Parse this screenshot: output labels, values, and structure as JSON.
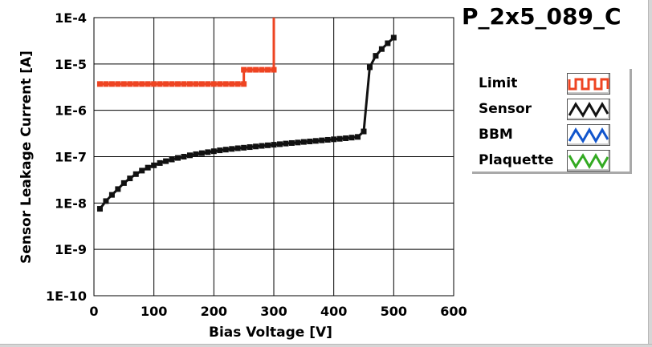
{
  "title": "P_2x5_089_C",
  "colors": {
    "limit": "#ee4422",
    "sensor": "#111111",
    "bbm": "#1155cc",
    "plaquette": "#33aa22",
    "grid": "#000000",
    "background": "#ffffff"
  },
  "legend": {
    "items": [
      {
        "label": "Limit",
        "color": "#ee4422",
        "pattern": "square-wave"
      },
      {
        "label": "Sensor",
        "color": "#111111",
        "pattern": "triangle-wave"
      },
      {
        "label": "BBM",
        "color": "#1155cc",
        "pattern": "triangle-wave"
      },
      {
        "label": "Plaquette",
        "color": "#33aa22",
        "pattern": "triangle-wave"
      }
    ]
  },
  "chart_data": {
    "type": "line",
    "xlabel": "Bias Voltage [V]",
    "ylabel": "Sensor Leakage Current [A]",
    "xlim": [
      0,
      600
    ],
    "ylim": [
      1e-10,
      0.0001
    ],
    "yscale": "log",
    "grid": true,
    "legend_position": "right",
    "x_ticks": [
      0,
      100,
      200,
      300,
      400,
      500,
      600
    ],
    "x_tick_labels": [
      "0",
      "100",
      "200",
      "300",
      "400",
      "500",
      "600"
    ],
    "y_ticks": [
      1e-10,
      1e-09,
      1e-08,
      1e-07,
      1e-06,
      1e-05,
      0.0001
    ],
    "y_tick_labels": [
      "1E-10",
      "1E-9",
      "1E-8",
      "1E-7",
      "1E-6",
      "1E-5",
      "1E-4"
    ],
    "series": [
      {
        "name": "Limit",
        "color": "#ee4422",
        "x": [
          10,
          20,
          30,
          40,
          50,
          60,
          70,
          80,
          90,
          100,
          110,
          120,
          130,
          140,
          150,
          160,
          170,
          180,
          190,
          200,
          210,
          220,
          230,
          240,
          250,
          250,
          260,
          270,
          280,
          290,
          300,
          300
        ],
        "y": [
          3.7e-06,
          3.7e-06,
          3.7e-06,
          3.7e-06,
          3.7e-06,
          3.7e-06,
          3.7e-06,
          3.7e-06,
          3.7e-06,
          3.7e-06,
          3.7e-06,
          3.7e-06,
          3.7e-06,
          3.7e-06,
          3.7e-06,
          3.7e-06,
          3.7e-06,
          3.7e-06,
          3.7e-06,
          3.7e-06,
          3.7e-06,
          3.7e-06,
          3.7e-06,
          3.7e-06,
          3.7e-06,
          7.5e-06,
          7.5e-06,
          7.5e-06,
          7.5e-06,
          7.5e-06,
          7.5e-06,
          0.0001
        ]
      },
      {
        "name": "Sensor",
        "color": "#111111",
        "x": [
          10,
          20,
          30,
          40,
          50,
          60,
          70,
          80,
          90,
          100,
          110,
          120,
          130,
          140,
          150,
          160,
          170,
          180,
          190,
          200,
          210,
          220,
          230,
          240,
          250,
          260,
          270,
          280,
          290,
          300,
          310,
          320,
          330,
          340,
          350,
          360,
          370,
          380,
          390,
          400,
          410,
          420,
          430,
          440,
          450,
          460,
          470,
          480,
          490,
          500
        ],
        "y": [
          7.5e-09,
          1.1e-08,
          1.5e-08,
          2e-08,
          2.7e-08,
          3.4e-08,
          4.2e-08,
          5e-08,
          5.8e-08,
          6.5e-08,
          7.3e-08,
          8e-08,
          8.7e-08,
          9.4e-08,
          1e-07,
          1.07e-07,
          1.13e-07,
          1.19e-07,
          1.25e-07,
          1.31e-07,
          1.37e-07,
          1.42e-07,
          1.47e-07,
          1.52e-07,
          1.56e-07,
          1.61e-07,
          1.66e-07,
          1.71e-07,
          1.76e-07,
          1.81e-07,
          1.86e-07,
          1.92e-07,
          1.97e-07,
          2.02e-07,
          2.08e-07,
          2.13e-07,
          2.19e-07,
          2.25e-07,
          2.31e-07,
          2.37e-07,
          2.43e-07,
          2.5e-07,
          2.58e-07,
          2.67e-07,
          3.5e-07,
          8.5e-06,
          1.5e-05,
          2.1e-05,
          2.8e-05,
          3.7e-05
        ]
      }
    ]
  }
}
